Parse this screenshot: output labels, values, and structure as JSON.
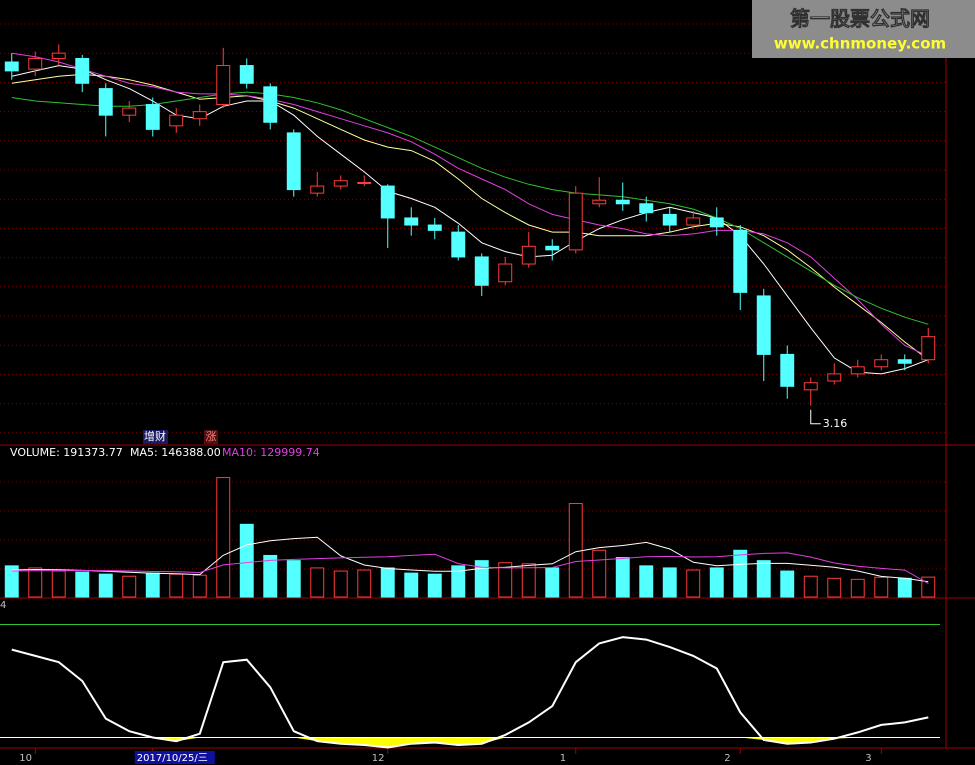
{
  "watermark": {
    "title": "第一股票公式网",
    "url": "www.chnmoney.com"
  },
  "signal_labels": [
    "增财",
    "涨"
  ],
  "chart_data": [
    {
      "type": "candlestick",
      "categories": [
        null,
        "10",
        null,
        null,
        null,
        null,
        "2017/10/25/三",
        null,
        null,
        null,
        null,
        null,
        null,
        null,
        null,
        null,
        "12",
        null,
        null,
        null,
        null,
        null,
        null,
        null,
        "1",
        null,
        null,
        null,
        null,
        null,
        null,
        "2",
        null,
        null,
        null,
        null,
        null,
        "3",
        null,
        null
      ],
      "open": [
        5.1,
        5.06,
        5.12,
        5.12,
        4.95,
        4.8,
        4.86,
        4.74,
        4.78,
        4.86,
        5.08,
        4.96,
        4.7,
        4.36,
        4.4,
        4.42,
        4.4,
        4.22,
        4.18,
        4.14,
        4.0,
        3.86,
        3.96,
        4.06,
        4.04,
        4.3,
        4.32,
        4.3,
        4.24,
        4.18,
        4.22,
        4.15,
        3.78,
        3.45,
        3.25,
        3.3,
        3.34,
        3.38,
        3.42,
        3.42
      ],
      "high": [
        5.15,
        5.16,
        5.2,
        5.14,
        4.98,
        4.88,
        4.9,
        4.84,
        4.86,
        5.18,
        5.12,
        4.98,
        4.72,
        4.48,
        4.46,
        4.46,
        4.41,
        4.28,
        4.22,
        4.18,
        4.02,
        4.0,
        4.14,
        4.1,
        4.4,
        4.45,
        4.42,
        4.34,
        4.28,
        4.26,
        4.28,
        4.18,
        3.82,
        3.5,
        3.32,
        3.4,
        3.42,
        3.45,
        3.45,
        3.6
      ],
      "low": [
        5.0,
        5.02,
        5.08,
        4.93,
        4.68,
        4.76,
        4.68,
        4.7,
        4.74,
        4.84,
        4.95,
        4.72,
        4.34,
        4.34,
        4.38,
        4.4,
        4.05,
        4.12,
        4.1,
        3.98,
        3.78,
        3.84,
        3.94,
        3.98,
        4.02,
        4.28,
        4.26,
        4.2,
        4.14,
        4.16,
        4.12,
        3.7,
        3.3,
        3.2,
        3.16,
        3.28,
        3.32,
        3.36,
        3.36,
        3.4
      ],
      "close": [
        5.05,
        5.12,
        5.15,
        4.98,
        4.8,
        4.84,
        4.72,
        4.8,
        4.82,
        5.08,
        4.98,
        4.76,
        4.38,
        4.4,
        4.43,
        4.42,
        4.22,
        4.18,
        4.15,
        4.0,
        3.84,
        3.96,
        4.06,
        4.04,
        4.36,
        4.32,
        4.3,
        4.25,
        4.18,
        4.22,
        4.17,
        3.8,
        3.45,
        3.27,
        3.29,
        3.34,
        3.38,
        3.42,
        3.4,
        3.55
      ],
      "up_color": "#ff3c3c",
      "down_color": "#54ffff",
      "low_label": "3.16",
      "series": [
        {
          "color": "#ffffff",
          "values": [
            5.02,
            5.05,
            5.08,
            5.06,
            5.0,
            4.95,
            4.88,
            4.8,
            4.78,
            4.85,
            4.88,
            4.88,
            4.8,
            4.68,
            4.58,
            4.48,
            4.37,
            4.33,
            4.28,
            4.19,
            4.08,
            4.03,
            4.0,
            4.01,
            4.09,
            4.16,
            4.21,
            4.25,
            4.28,
            4.25,
            4.22,
            4.12,
            3.96,
            3.78,
            3.6,
            3.43,
            3.35,
            3.34,
            3.37,
            3.42
          ]
        },
        {
          "color": "#ffffa0",
          "values": [
            4.98,
            5.0,
            5.02,
            5.03,
            5.02,
            5.0,
            4.97,
            4.93,
            4.89,
            4.9,
            4.91,
            4.88,
            4.84,
            4.78,
            4.72,
            4.66,
            4.62,
            4.6,
            4.54,
            4.44,
            4.33,
            4.25,
            4.18,
            4.14,
            4.14,
            4.12,
            4.12,
            4.12,
            4.14,
            4.17,
            4.19,
            4.17,
            4.12,
            4.04,
            3.94,
            3.83,
            3.73,
            3.63,
            3.52,
            3.42
          ]
        },
        {
          "color": "#e040e0",
          "values": [
            5.15,
            5.13,
            5.1,
            5.06,
            5.02,
            4.98,
            4.96,
            4.93,
            4.92,
            4.92,
            4.91,
            4.89,
            4.86,
            4.82,
            4.78,
            4.74,
            4.7,
            4.65,
            4.58,
            4.5,
            4.44,
            4.38,
            4.3,
            4.24,
            4.21,
            4.18,
            4.16,
            4.13,
            4.12,
            4.13,
            4.15,
            4.15,
            4.13,
            4.08,
            4.0,
            3.88,
            3.76,
            3.62,
            3.5,
            3.44
          ]
        },
        {
          "color": "#30c030",
          "values": [
            4.9,
            4.88,
            4.87,
            4.86,
            4.85,
            4.85,
            4.86,
            4.88,
            4.9,
            4.92,
            4.93,
            4.92,
            4.9,
            4.87,
            4.83,
            4.78,
            4.73,
            4.68,
            4.62,
            4.56,
            4.5,
            4.45,
            4.41,
            4.38,
            4.36,
            4.35,
            4.34,
            4.32,
            4.3,
            4.27,
            4.22,
            4.16,
            4.08,
            4.0,
            3.92,
            3.84,
            3.77,
            3.71,
            3.66,
            3.62
          ]
        }
      ],
      "ylim": [
        2.95,
        5.45
      ]
    },
    {
      "type": "volume",
      "legend": [
        "VOLUME: 191373.77",
        "MA5: 146388.00",
        "MA10: 129999.74"
      ],
      "legend_colors": [
        "#ffffff",
        "#ffffff",
        "#e040e0"
      ],
      "values": [
        300000,
        280000,
        250000,
        240000,
        220000,
        200000,
        230000,
        220000,
        210000,
        1150000,
        700000,
        400000,
        350000,
        280000,
        250000,
        260000,
        280000,
        230000,
        220000,
        300000,
        350000,
        330000,
        320000,
        280000,
        900000,
        450000,
        380000,
        300000,
        280000,
        260000,
        280000,
        450000,
        350000,
        250000,
        200000,
        180000,
        170000,
        190000,
        180000,
        191373.77
      ],
      "series": [
        {
          "color": "#ffffff",
          "values": [
            260000,
            265000,
            262000,
            256000,
            248000,
            238000,
            228000,
            224000,
            216000,
            402000,
            502000,
            542000,
            562000,
            576000,
            396000,
            308000,
            274000,
            260000,
            248000,
            248000,
            276000,
            286000,
            304000,
            320000,
            436000,
            476000,
            496000,
            526000,
            462000,
            334000,
            300000,
            314000,
            324000,
            324000,
            306000,
            286000,
            250000,
            198000,
            180000,
            146388
          ]
        },
        {
          "color": "#e040e0",
          "values": [
            250000,
            252000,
            254000,
            255000,
            254000,
            251000,
            246000,
            243000,
            236000,
            309000,
            331000,
            352000,
            362000,
            370000,
            377000,
            382000,
            388000,
            401000,
            412000,
            322000,
            286000,
            280000,
            282000,
            284000,
            342000,
            356000,
            372000,
            388000,
            391000,
            385000,
            388000,
            405000,
            420000,
            425000,
            384000,
            327000,
            296000,
            275000,
            259000,
            129999.74
          ]
        }
      ],
      "ylim": [
        0,
        1300000
      ]
    },
    {
      "type": "indicator",
      "panel_label": "4",
      "values": [
        70,
        65,
        60,
        45,
        15,
        5,
        0,
        -3,
        3,
        60,
        62,
        40,
        5,
        -3,
        -5,
        -6,
        -8,
        -5,
        -4,
        -6,
        -5,
        2,
        12,
        25,
        60,
        75,
        80,
        78,
        72,
        65,
        55,
        20,
        -2,
        -5,
        -4,
        -1,
        4,
        10,
        12,
        16
      ],
      "color": "#ffffff",
      "fill_color": "#ffff00",
      "reference_lines": [
        {
          "value": 90,
          "color": "#30c030"
        },
        {
          "value": 0,
          "color": "#ffffff"
        }
      ],
      "ylim": [
        -10,
        100
      ]
    }
  ]
}
